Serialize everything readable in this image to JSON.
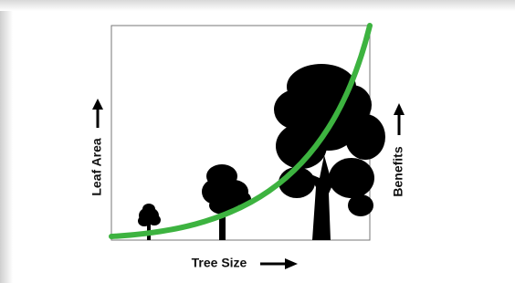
{
  "axes": {
    "x_label": "Tree Size",
    "y_label": "Leaf Area",
    "y2_label": "Benefits"
  }
}
